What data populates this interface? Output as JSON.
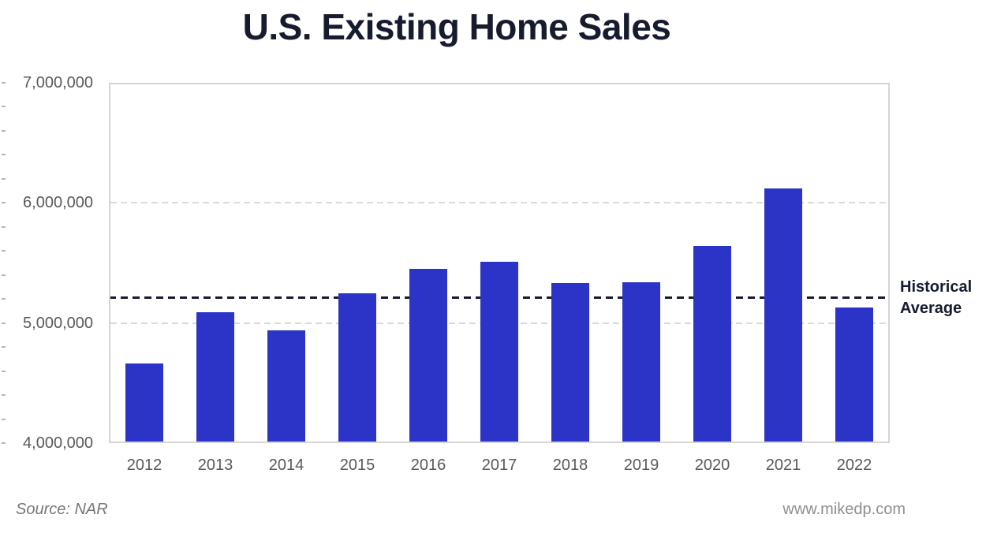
{
  "header": {
    "title": "U.S. Existing Home Sales"
  },
  "chart_data": {
    "type": "bar",
    "title": "U.S. Existing Home Sales",
    "categories": [
      "2012",
      "2013",
      "2014",
      "2015",
      "2016",
      "2017",
      "2018",
      "2019",
      "2020",
      "2021",
      "2022"
    ],
    "values": [
      4660000,
      5090000,
      4940000,
      5250000,
      5450000,
      5510000,
      5330000,
      5340000,
      5640000,
      6120000,
      5130000
    ],
    "xlabel": "",
    "ylabel": "",
    "ylim": [
      4000000,
      7000000
    ],
    "y_major_ticks": [
      {
        "value": 7000000,
        "label": "7,000,000"
      },
      {
        "value": 6000000,
        "label": "6,000,000"
      },
      {
        "value": 5000000,
        "label": "5,000,000"
      },
      {
        "value": 4000000,
        "label": "4,000,000"
      }
    ],
    "y_minor_tick_step": 200000,
    "grid": "horizontal dashed gridlines at interior major ticks",
    "legend": "none",
    "reference_line": {
      "label": "Historical Average",
      "label_lines": [
        "Historical",
        "Average"
      ],
      "value": 5210000,
      "style": "dashed"
    }
  },
  "footer": {
    "source": "Source: NAR",
    "website": "www.mikedp.com"
  },
  "colors": {
    "bar_blue": "#2b34c6",
    "title_navy": "#161b2e",
    "gridline_gray": "#d9d9d9",
    "plot_border_gray": "#d4d4d4",
    "axis_label_gray": "#58595b",
    "source_gray": "#767676",
    "website_gray": "#8f8f8f"
  }
}
